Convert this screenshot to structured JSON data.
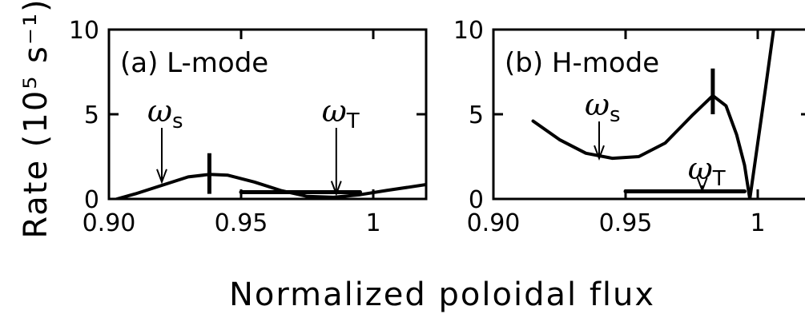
{
  "chart_data": [
    {
      "type": "line",
      "panel": "(a) L-mode",
      "title": "(a) L-mode",
      "xlim": [
        0.9,
        1.02
      ],
      "ylim": [
        0,
        10
      ],
      "xticks": [
        0.9,
        0.95,
        1.0
      ],
      "xtick_labels": [
        "0.90",
        "0.95",
        "1"
      ],
      "yticks": [
        0,
        5,
        10
      ],
      "ytick_labels": [
        "0",
        "5",
        "10"
      ],
      "series": [
        {
          "x": [
            0.903,
            0.91,
            0.92,
            0.93,
            0.938,
            0.945,
            0.955,
            0.965,
            0.975,
            0.985,
            0.995,
            1.005,
            1.02
          ],
          "y": [
            0.0,
            0.3,
            0.8,
            1.3,
            1.45,
            1.4,
            1.0,
            0.5,
            0.15,
            0.1,
            0.25,
            0.5,
            0.85
          ]
        },
        {
          "x": [
            0.95,
            0.995
          ],
          "y": [
            0.4,
            0.4
          ]
        }
      ],
      "markers": [
        {
          "x": 0.938,
          "y_range": [
            0.3,
            2.7
          ]
        }
      ],
      "annotations": [
        {
          "symbol": "ω",
          "sub": "s",
          "x": 0.92,
          "y": 1.0
        },
        {
          "symbol": "ω",
          "sub": "T",
          "x": 0.986,
          "y": 0.3
        }
      ]
    },
    {
      "type": "line",
      "panel": "(b) H-mode",
      "title": "(b) H-mode",
      "xlim": [
        0.9,
        1.02
      ],
      "ylim": [
        0,
        10
      ],
      "xticks": [
        0.9,
        0.95,
        1.0
      ],
      "xtick_labels": [
        "0.90",
        "0.95",
        "1"
      ],
      "yticks": [
        0,
        5,
        10
      ],
      "ytick_labels": [
        "0",
        "5",
        "10"
      ],
      "series": [
        {
          "x": [
            0.915,
            0.925,
            0.935,
            0.945,
            0.955,
            0.965,
            0.975,
            0.983,
            0.988,
            0.992,
            0.995,
            0.997,
            1.0,
            1.003,
            1.006
          ],
          "y": [
            4.6,
            3.5,
            2.7,
            2.4,
            2.5,
            3.3,
            4.9,
            6.1,
            5.5,
            3.8,
            2.0,
            0.0,
            3.3,
            6.6,
            10.0
          ]
        },
        {
          "x": [
            0.95,
            0.995
          ],
          "y": [
            0.45,
            0.45
          ]
        }
      ],
      "markers": [
        {
          "x": 0.983,
          "y_range": [
            5.0,
            7.7
          ]
        }
      ],
      "annotations": [
        {
          "symbol": "ω",
          "sub": "s",
          "x": 0.94,
          "y": 2.4
        },
        {
          "symbol": "ω",
          "sub": "T",
          "x": 0.979,
          "y": 0.5
        }
      ]
    }
  ],
  "figure": {
    "ylabel": "Rate (10⁵ s⁻¹)",
    "xlabel": "Normalized poloidal flux"
  }
}
